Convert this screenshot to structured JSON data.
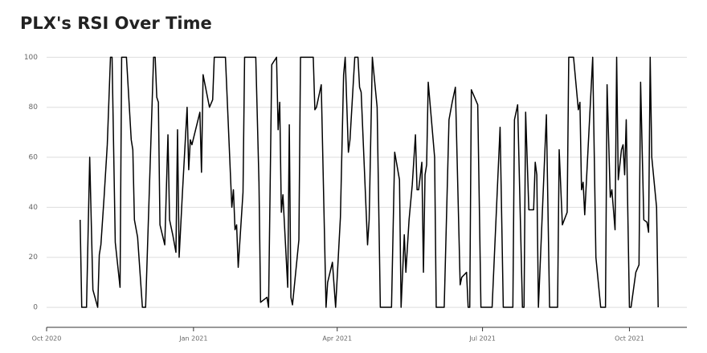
{
  "chart_data": {
    "type": "line",
    "title": "PLX's RSI Over Time",
    "color": "#000000",
    "grid": true,
    "xlim": [
      0,
      401
    ],
    "xticks": [
      {
        "value": 0,
        "label": "Oct 2020"
      },
      {
        "value": 92,
        "label": "Jan 2021"
      },
      {
        "value": 182,
        "label": "Apr 2021"
      },
      {
        "value": 273,
        "label": "Jul 2021"
      },
      {
        "value": 365,
        "label": "Oct 2021"
      }
    ],
    "ylim": [
      -8,
      103
    ],
    "yticks": [
      0,
      20,
      40,
      60,
      80,
      100
    ],
    "x": [
      21,
      22,
      25,
      27,
      29,
      32,
      33,
      34,
      36,
      38,
      40,
      41,
      43,
      46,
      47,
      50,
      53,
      54,
      55,
      57,
      60,
      62,
      67,
      68,
      69,
      70,
      71,
      74,
      76,
      77,
      79,
      81,
      82,
      83,
      85,
      88,
      89,
      90,
      91,
      96,
      97,
      98,
      102,
      104,
      105,
      112,
      116,
      117,
      118,
      119,
      120,
      123,
      124,
      131,
      133,
      134,
      138,
      139,
      141,
      144,
      145,
      146,
      147,
      148,
      151,
      152,
      153,
      154,
      158,
      159,
      167,
      168,
      169,
      172,
      175,
      176,
      179,
      181,
      184,
      186,
      187,
      189,
      190,
      193,
      195,
      196,
      197,
      201,
      202,
      204,
      207,
      209,
      216,
      218,
      221,
      222,
      224,
      225,
      227,
      229,
      231,
      232,
      233,
      235,
      236,
      237,
      238,
      239,
      243,
      244,
      249,
      252,
      254,
      256,
      259,
      260,
      263,
      264,
      265,
      266,
      270,
      272,
      279,
      284,
      286,
      292,
      293,
      295,
      298,
      299,
      300,
      302,
      305,
      306,
      307,
      308,
      313,
      315,
      320,
      321,
      323,
      326,
      327,
      330,
      333,
      334,
      335,
      336,
      337,
      342,
      344,
      347,
      350,
      351,
      353,
      354,
      356,
      357,
      358,
      360,
      361,
      362,
      363,
      365,
      366,
      369,
      371,
      372,
      374,
      376,
      377,
      378,
      379,
      382,
      383
    ],
    "values": [
      35,
      0,
      0,
      60,
      7,
      0,
      21,
      25,
      44,
      65,
      100,
      100,
      26,
      8,
      100,
      100,
      67,
      63,
      35,
      28,
      0,
      0,
      100,
      100,
      84,
      82,
      33,
      25,
      69,
      35,
      29,
      22,
      71,
      20,
      45,
      80,
      55,
      67,
      65,
      78,
      54,
      93,
      80,
      83,
      100,
      100,
      40,
      47,
      31,
      33,
      16,
      46,
      100,
      100,
      50,
      2,
      4,
      0,
      97,
      100,
      71,
      82,
      38,
      45,
      8,
      73,
      4,
      1,
      27,
      100,
      100,
      79,
      80,
      89,
      0,
      10,
      18,
      0,
      36,
      93,
      100,
      62,
      67,
      100,
      100,
      88,
      86,
      25,
      35,
      100,
      80,
      0,
      0,
      62,
      51,
      0,
      29,
      14,
      35,
      49,
      69,
      47,
      47,
      58,
      14,
      53,
      57,
      90,
      60,
      0,
      0,
      75,
      82,
      88,
      9,
      12,
      14,
      0,
      0,
      87,
      81,
      0,
      0,
      72,
      0,
      0,
      75,
      81,
      0,
      0,
      78,
      39,
      39,
      58,
      53,
      0,
      77,
      0,
      0,
      63,
      33,
      38,
      100,
      100,
      79,
      82,
      47,
      50,
      37,
      100,
      20,
      0,
      0,
      89,
      44,
      47,
      31,
      100,
      51,
      63,
      65,
      53,
      75,
      0,
      0,
      14,
      17,
      90,
      35,
      34,
      30,
      100,
      60,
      40,
      0
    ]
  }
}
